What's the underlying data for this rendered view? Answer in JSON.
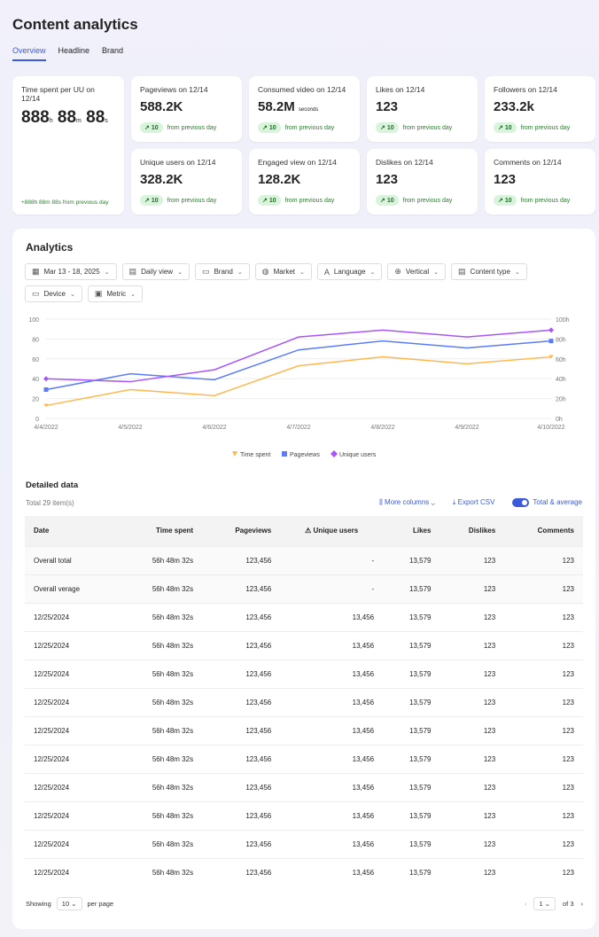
{
  "title": "Content analytics",
  "tabs": [
    "Overview",
    "Headline",
    "Brand"
  ],
  "time_card": {
    "label": "Time spent per UU on 12/14",
    "h": "888",
    "m": "88",
    "s": "88",
    "hu": "h",
    "mu": "m",
    "su": "s",
    "delta": "+888h 88m 88s from previous day"
  },
  "cards": [
    {
      "label": "Pageviews on 12/14",
      "value": "588.2K",
      "unit": "",
      "change": "10",
      "note": "from previous day"
    },
    {
      "label": "Consumed video on 12/14",
      "value": "58.2M",
      "unit": "seconds",
      "change": "10",
      "note": "from previous day"
    },
    {
      "label": "Likes on 12/14",
      "value": "123",
      "unit": "",
      "change": "10",
      "note": "from previous day"
    },
    {
      "label": "Followers on 12/14",
      "value": "233.2k",
      "unit": "",
      "change": "10",
      "note": "from previous day"
    },
    {
      "label": "Unique users on 12/14",
      "value": "328.2K",
      "unit": "",
      "change": "10",
      "note": "from previous day"
    },
    {
      "label": "Engaged view on 12/14",
      "value": "128.2K",
      "unit": "",
      "change": "10",
      "note": "from previous day"
    },
    {
      "label": "Dislikes on 12/14",
      "value": "123",
      "unit": "",
      "change": "10",
      "note": "from previous day"
    },
    {
      "label": "Comments on 12/14",
      "value": "123",
      "unit": "",
      "change": "10",
      "note": "from previous day"
    }
  ],
  "analytics": {
    "title": "Analytics",
    "filters": [
      {
        "icon": "calendar-icon",
        "g": "▦",
        "label": "Mar 13 - 18, 2025"
      },
      {
        "icon": "view-icon",
        "g": "▤",
        "label": "Daily view"
      },
      {
        "icon": "brand-icon",
        "g": "▭",
        "label": "Brand"
      },
      {
        "icon": "globe-icon",
        "g": "◍",
        "label": "Market"
      },
      {
        "icon": "language-icon",
        "g": "A",
        "label": "Language"
      },
      {
        "icon": "vertical-icon",
        "g": "⊕",
        "label": "Vertical"
      },
      {
        "icon": "content-type-icon",
        "g": "▤",
        "label": "Content type"
      },
      {
        "icon": "device-icon",
        "g": "▭",
        "label": "Device"
      },
      {
        "icon": "metric-icon",
        "g": "▣",
        "label": "Metric"
      }
    ]
  },
  "chart_data": {
    "type": "line",
    "x": [
      "4/4/2022",
      "4/5/2022",
      "4/6/2022",
      "4/7/2022",
      "4/8/2022",
      "4/9/2022",
      "4/10/2022"
    ],
    "ylim": [
      0,
      100
    ],
    "yticks": [
      "0",
      "20",
      "40",
      "60",
      "80",
      "100"
    ],
    "y2ticks": [
      "0h",
      "20h",
      "40h",
      "60h",
      "80h",
      "100h"
    ],
    "grid": true,
    "legend": "bottom",
    "series": [
      {
        "name": "Time spent",
        "color": "#ffb74d",
        "marker": "triangle",
        "values": [
          13,
          29,
          23,
          53,
          62,
          55,
          62
        ]
      },
      {
        "name": "Pageviews",
        "color": "#5b7cfa",
        "marker": "square",
        "values": [
          29,
          45,
          39,
          69,
          78,
          71,
          78
        ]
      },
      {
        "name": "Unique users",
        "color": "#a855f7",
        "marker": "diamond",
        "values": [
          40,
          37,
          49,
          82,
          89,
          82,
          89
        ]
      }
    ]
  },
  "detail": {
    "title": "Detailed data",
    "total": "Total 29 item(s)",
    "more_columns": "More columns",
    "export": "Export CSV",
    "toggle": "Total & average",
    "columns": [
      "Date",
      "Time spent",
      "Pageviews",
      "Unique users",
      "Likes",
      "Dislikes",
      "Comments"
    ],
    "rows": [
      [
        "Overall total",
        "56h 48m 32s",
        "123,456",
        "-",
        "13,579",
        "123",
        "123"
      ],
      [
        "Overall verage",
        "56h 48m 32s",
        "123,456",
        "-",
        "13,579",
        "123",
        "123"
      ],
      [
        "12/25/2024",
        "56h 48m 32s",
        "123,456",
        "13,456",
        "13,579",
        "123",
        "123"
      ],
      [
        "12/25/2024",
        "56h 48m 32s",
        "123,456",
        "13,456",
        "13,579",
        "123",
        "123"
      ],
      [
        "12/25/2024",
        "56h 48m 32s",
        "123,456",
        "13,456",
        "13,579",
        "123",
        "123"
      ],
      [
        "12/25/2024",
        "56h 48m 32s",
        "123,456",
        "13,456",
        "13,579",
        "123",
        "123"
      ],
      [
        "12/25/2024",
        "56h 48m 32s",
        "123,456",
        "13,456",
        "13,579",
        "123",
        "123"
      ],
      [
        "12/25/2024",
        "56h 48m 32s",
        "123,456",
        "13,456",
        "13,579",
        "123",
        "123"
      ],
      [
        "12/25/2024",
        "56h 48m 32s",
        "123,456",
        "13,456",
        "13,579",
        "123",
        "123"
      ],
      [
        "12/25/2024",
        "56h 48m 32s",
        "123,456",
        "13,456",
        "13,579",
        "123",
        "123"
      ],
      [
        "12/25/2024",
        "56h 48m 32s",
        "123,456",
        "13,456",
        "13,579",
        "123",
        "123"
      ],
      [
        "12/25/2024",
        "56h 48m 32s",
        "123,456",
        "13,456",
        "13,579",
        "123",
        "123"
      ]
    ],
    "showing": "Showing",
    "per_page_value": "10",
    "per_page": "per page",
    "page": "1",
    "of": "of 3"
  }
}
